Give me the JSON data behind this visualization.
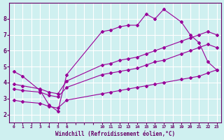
{
  "xlabel": "Windchill (Refroidissement éolien,°C)",
  "background_color": "#cff0f0",
  "grid_color": "#ffffff",
  "line_color": "#990099",
  "ylim": [
    1.5,
    9.0
  ],
  "yticks": [
    2,
    3,
    4,
    5,
    6,
    7,
    8
  ],
  "xtick_labels": [
    "0",
    "1",
    "2",
    "3",
    "4",
    "5",
    "6",
    "",
    "",
    "",
    "10",
    "11",
    "12",
    "13",
    "14",
    "15",
    "16",
    "17",
    "18",
    "19",
    "20",
    "21",
    "22",
    "23"
  ],
  "series": [
    {
      "xi": [
        0,
        1,
        3,
        4,
        5,
        6,
        10,
        11,
        12,
        13,
        14,
        15,
        16,
        17,
        19,
        20,
        21,
        22,
        23
      ],
      "y": [
        4.7,
        4.4,
        3.5,
        2.6,
        2.2,
        4.5,
        7.2,
        7.3,
        7.5,
        7.6,
        7.6,
        8.3,
        8.0,
        8.6,
        7.8,
        7.0,
        6.5,
        5.3,
        4.8
      ],
      "linestyle": "-"
    },
    {
      "xi": [
        0,
        1,
        3,
        4,
        5,
        6,
        10,
        11,
        12,
        13,
        14,
        15,
        16,
        17,
        19,
        20,
        21,
        22,
        23
      ],
      "y": [
        3.9,
        3.8,
        3.6,
        3.4,
        3.3,
        4.1,
        5.1,
        5.2,
        5.4,
        5.5,
        5.6,
        5.8,
        6.0,
        6.2,
        6.6,
        6.8,
        7.0,
        7.2,
        7.0
      ],
      "linestyle": "-"
    },
    {
      "xi": [
        0,
        1,
        3,
        4,
        5,
        6,
        10,
        11,
        12,
        13,
        14,
        15,
        16,
        17,
        19,
        20,
        21,
        22,
        23
      ],
      "y": [
        3.6,
        3.5,
        3.4,
        3.2,
        3.1,
        3.7,
        4.5,
        4.6,
        4.7,
        4.8,
        4.9,
        5.1,
        5.3,
        5.4,
        5.8,
        6.0,
        6.2,
        6.4,
        6.2
      ],
      "linestyle": "-"
    },
    {
      "xi": [
        0,
        1,
        3,
        4,
        5,
        6,
        10,
        11,
        12,
        13,
        14,
        15,
        16,
        17,
        19,
        20,
        21,
        22,
        23
      ],
      "y": [
        2.9,
        2.8,
        2.7,
        2.5,
        2.4,
        2.9,
        3.3,
        3.4,
        3.5,
        3.6,
        3.7,
        3.8,
        3.9,
        4.0,
        4.2,
        4.3,
        4.4,
        4.6,
        4.8
      ],
      "linestyle": "-"
    }
  ]
}
